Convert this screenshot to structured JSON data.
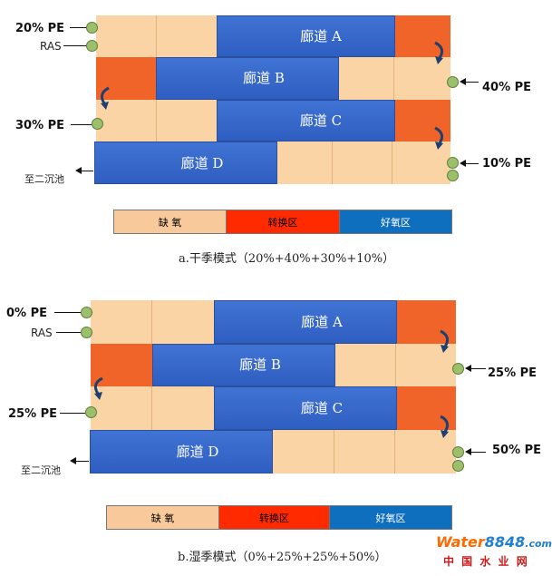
{
  "diagram_a": {
    "corridors": [
      "廊道 A",
      "廊道 B",
      "廊道 C",
      "廊道 D"
    ],
    "labels": {
      "pe_top": "20% PE",
      "ras": "RAS",
      "pe_right_b": "40% PE",
      "pe_left_c": "30% PE",
      "pe_right_d": "10% PE",
      "outlet": "至二沉池"
    },
    "caption": "a.干季模式（20%+40%+30%+10%）"
  },
  "diagram_b": {
    "corridors": [
      "廊道 A",
      "廊道 B",
      "廊道 C",
      "廊道 D"
    ],
    "labels": {
      "pe_top": "0% PE",
      "ras": "RAS",
      "pe_right_b": "25% PE",
      "pe_left_c": "25% PE",
      "pe_right_d": "50% PE",
      "outlet": "至二沉池"
    },
    "caption": "b.湿季模式（0%+25%+25%+50%）"
  },
  "legend": {
    "anoxic": "缺 氧",
    "transition": "转换区",
    "aerobic": "好氧区"
  },
  "colors": {
    "anoxic": "#fbd4a6",
    "transition": "#f0642a",
    "aerobic": "#3366cc",
    "node": "#9bbf6a"
  },
  "watermark": {
    "brand_a": "Water",
    "brand_b": "8848",
    "brand_c": ".com",
    "sub": "中 国 水 业 网"
  }
}
